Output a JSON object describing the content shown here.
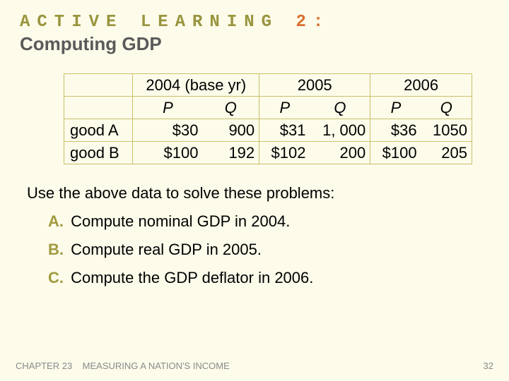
{
  "title": {
    "line1_prefix": "ACTIVE LEARNING",
    "line1_accent": "2:",
    "line2": "Computing GDP",
    "colors": {
      "line1": "#98953e",
      "accent": "#d96f2f",
      "line2": "#5a5a5a"
    }
  },
  "table": {
    "type": "table",
    "border_color": "#c9c06a",
    "years": [
      {
        "label": "2004 (base yr)"
      },
      {
        "label": "2005"
      },
      {
        "label": "2006"
      }
    ],
    "subheaders": {
      "p": "P",
      "q": "Q"
    },
    "row_labels": [
      "good A",
      "good B"
    ],
    "rows": [
      {
        "label": "good A",
        "cells": [
          {
            "p": "$30",
            "q": "900"
          },
          {
            "p": "$31",
            "q": "1, 000"
          },
          {
            "p": "$36",
            "q": "1050"
          }
        ]
      },
      {
        "label": "good B",
        "cells": [
          {
            "p": "$100",
            "q": "192"
          },
          {
            "p": "$102",
            "q": "200"
          },
          {
            "p": "$100",
            "q": "205"
          }
        ]
      }
    ],
    "font_size": 22
  },
  "instruction": "Use the above data to solve these problems:",
  "problems": [
    {
      "letter": "A.",
      "text": "Compute nominal GDP in 2004."
    },
    {
      "letter": "B.",
      "text": "Compute real GDP in 2005."
    },
    {
      "letter": "C.",
      "text": "Compute the GDP deflator in 2006."
    }
  ],
  "footer": {
    "chapter": "CHAPTER 23",
    "subtitle": "MEASURING A NATION'S INCOME",
    "page": "32"
  },
  "colors": {
    "background": "#fdfbea",
    "letter": "#a09a3f",
    "footer_text": "#8a8a8a"
  }
}
